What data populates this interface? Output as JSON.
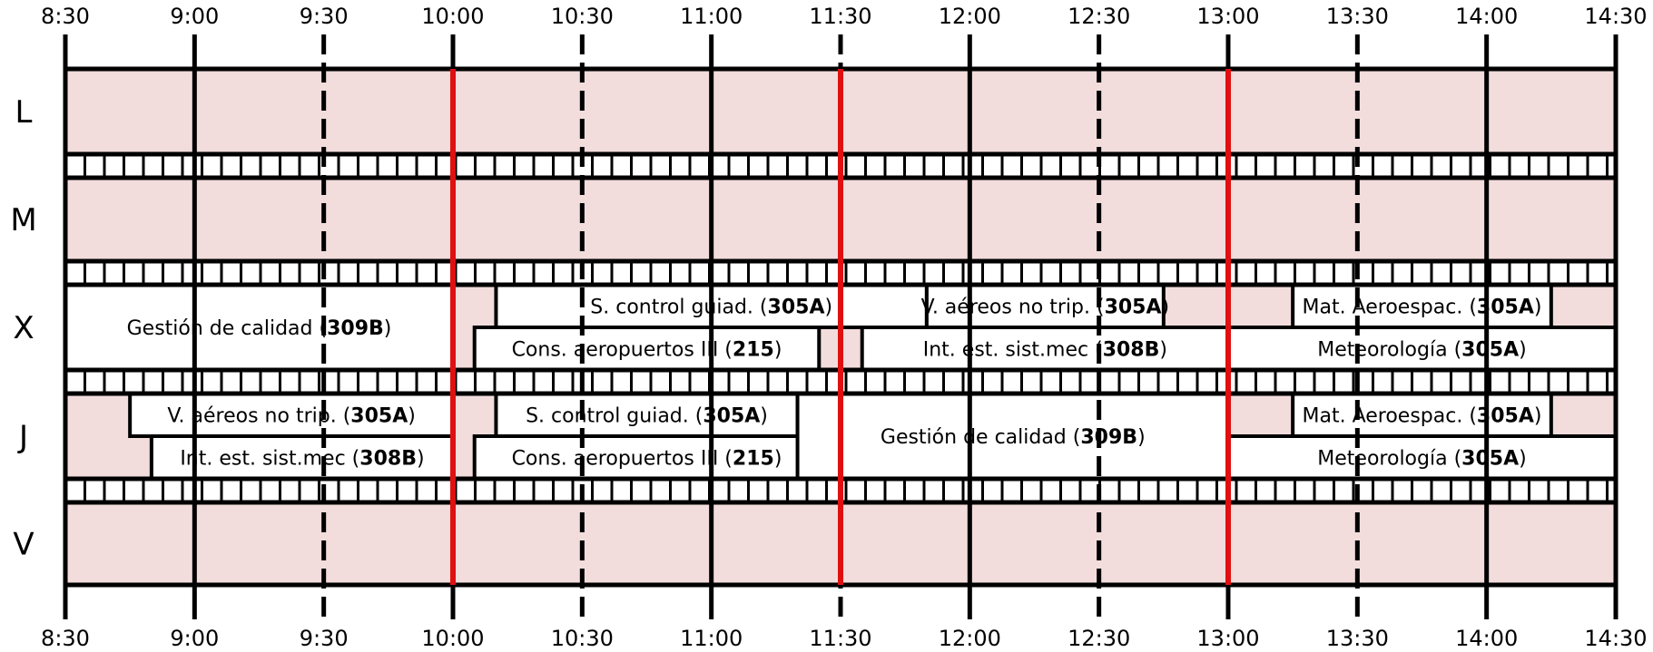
{
  "times": [
    "8:30",
    "9:00",
    "9:30",
    "10:00",
    "10:30",
    "11:00",
    "11:30",
    "12:00",
    "12:30",
    "13:00",
    "13:30",
    "14:00",
    "14:30"
  ],
  "days": [
    "L",
    "M",
    "X",
    "J",
    "V"
  ],
  "colors": {
    "background_fill": "#f2dcdc",
    "accent_line": "#e01010",
    "block_fill": "#ffffff",
    "grid": "#000000"
  },
  "courses": [
    {
      "day": "X",
      "start": "8:30",
      "end": "10:00",
      "slot": "full",
      "name": "Gestión de calidad",
      "room": "309B"
    },
    {
      "day": "X",
      "start": "10:10",
      "end": "11:50",
      "slot": "top",
      "name": "S. control guiad.",
      "room": "305A"
    },
    {
      "day": "X",
      "start": "11:50",
      "end": "12:45",
      "slot": "top",
      "name": "V. aéreos no trip.",
      "room": "305A"
    },
    {
      "day": "X",
      "start": "13:15",
      "end": "14:15",
      "slot": "top",
      "name": "Mat. Aeroespac.",
      "room": "305A"
    },
    {
      "day": "X",
      "start": "10:05",
      "end": "11:25",
      "slot": "bottom",
      "name": "Cons. aeropuertos III",
      "room": "215"
    },
    {
      "day": "X",
      "start": "11:35",
      "end": "13:00",
      "slot": "bottom",
      "name": "Int. est. sist.mec",
      "room": "308B"
    },
    {
      "day": "X",
      "start": "13:00",
      "end": "14:30",
      "slot": "bottom",
      "name": "Meteorología",
      "room": "305A"
    },
    {
      "day": "J",
      "start": "8:45",
      "end": "10:00",
      "slot": "top",
      "name": "V. aéreos no trip.",
      "room": "305A"
    },
    {
      "day": "J",
      "start": "10:10",
      "end": "11:20",
      "slot": "top",
      "name": "S. control guiad.",
      "room": "305A"
    },
    {
      "day": "J",
      "start": "13:15",
      "end": "14:15",
      "slot": "top",
      "name": "Mat. Aeroespac.",
      "room": "305A"
    },
    {
      "day": "J",
      "start": "8:50",
      "end": "10:00",
      "slot": "bottom",
      "name": "Int. est. sist.mec",
      "room": "308B"
    },
    {
      "day": "J",
      "start": "10:05",
      "end": "11:25",
      "slot": "bottom",
      "name": "Cons. aeropuertos III",
      "room": "215"
    },
    {
      "day": "J",
      "start": "11:20",
      "end": "13:00",
      "slot": "full",
      "name": "Gestión de calidad",
      "room": "309B"
    },
    {
      "day": "J",
      "start": "13:00",
      "end": "14:30",
      "slot": "bottom",
      "name": "Meteorología",
      "room": "305A"
    }
  ]
}
